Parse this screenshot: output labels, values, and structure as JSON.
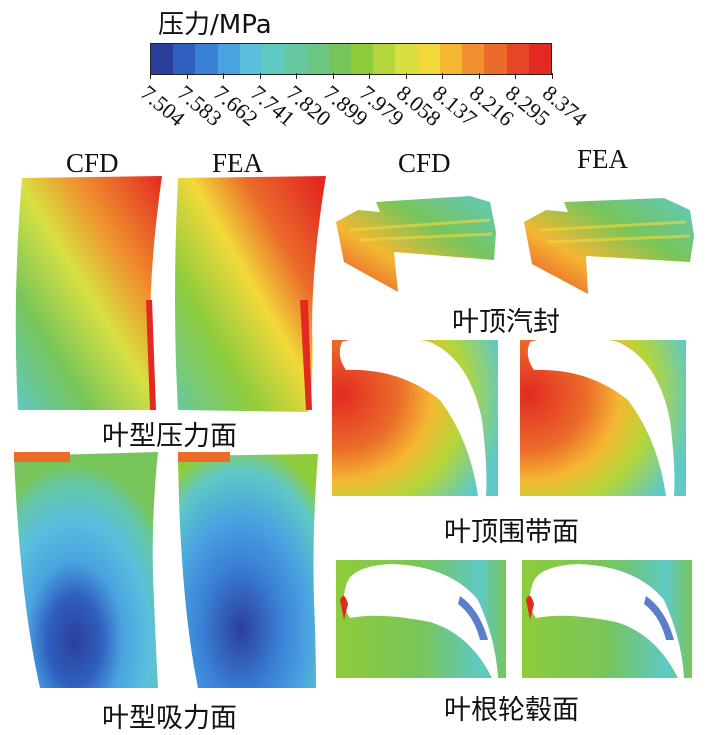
{
  "legend": {
    "title": "压力/MPa",
    "ticks": [
      "7.504",
      "7.583",
      "7.662",
      "7.741",
      "7.820",
      "7.899",
      "7.979",
      "8.058",
      "8.137",
      "8.216",
      "8.295",
      "8.374"
    ],
    "colors": [
      "#2c3e9c",
      "#2f5fbf",
      "#3a80d6",
      "#4aa3e0",
      "#5ac0dd",
      "#5fc9c4",
      "#66c8a0",
      "#6bc583",
      "#77c55a",
      "#8fcc3c",
      "#b4d63a",
      "#d8e041",
      "#f2d93a",
      "#f4b732",
      "#f0902e",
      "#eb6b2a",
      "#e64528",
      "#e22a22"
    ]
  },
  "headers": {
    "left_cfd": "CFD",
    "left_fea": "FEA",
    "right_cfd": "CFD",
    "right_fea": "FEA"
  },
  "captions": {
    "pressure_surface": "叶型压力面",
    "suction_surface": "叶型吸力面",
    "tip_seal": "叶顶汽封",
    "tip_shroud": "叶顶围带面",
    "hub": "叶根轮毂面"
  }
}
